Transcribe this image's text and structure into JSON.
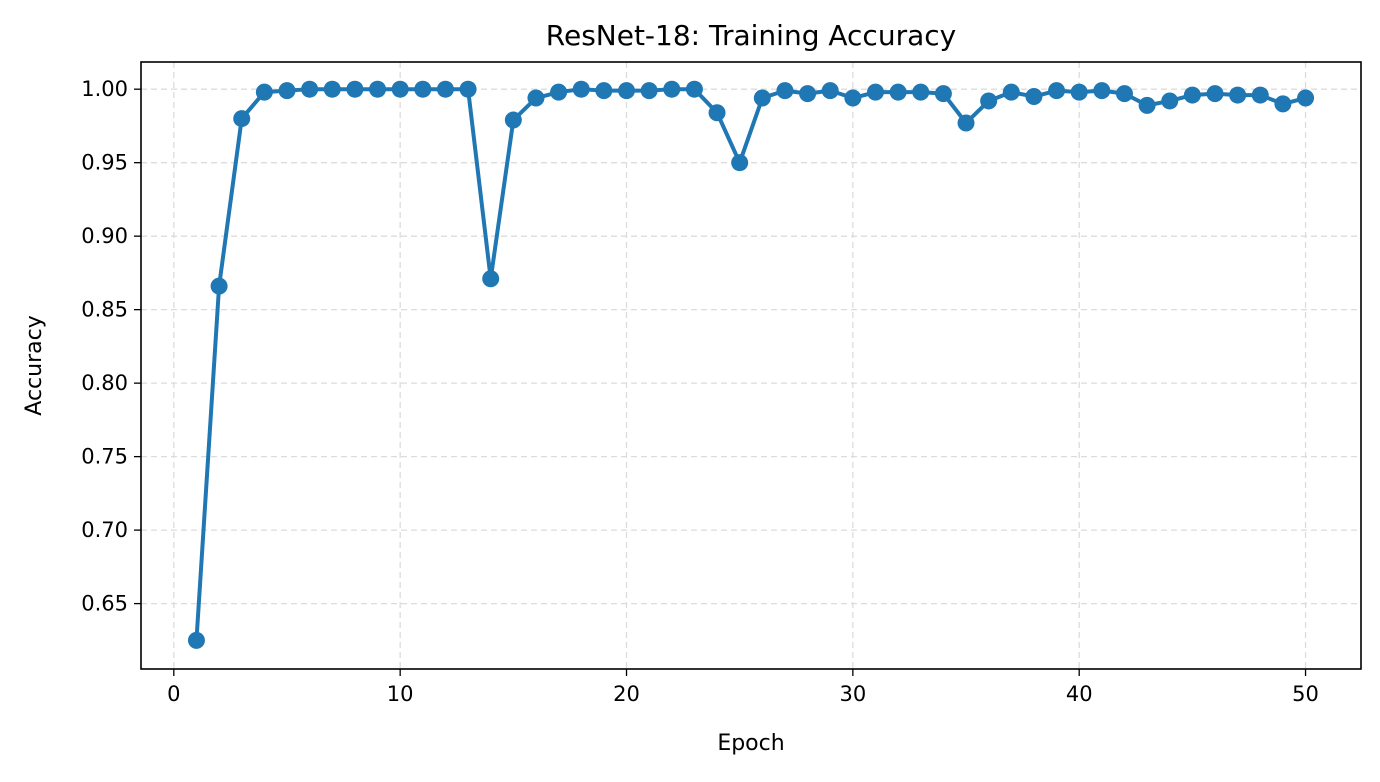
{
  "chart_data": {
    "type": "line",
    "title": "ResNet-18: Training Accuracy",
    "xlabel": "Epoch",
    "ylabel": "Accuracy",
    "xlim": [
      -1.45,
      52.45
    ],
    "ylim": [
      0.6055,
      1.0185
    ],
    "x_ticks": [
      0,
      10,
      20,
      30,
      40,
      50
    ],
    "x_tick_labels": [
      "0",
      "10",
      "20",
      "30",
      "40",
      "50"
    ],
    "y_ticks": [
      0.65,
      0.7,
      0.75,
      0.8,
      0.85,
      0.9,
      0.95,
      1.0
    ],
    "y_tick_labels": [
      "0.65",
      "0.70",
      "0.75",
      "0.80",
      "0.85",
      "0.90",
      "0.95",
      "1.00"
    ],
    "grid": true,
    "line_color": "#1f77b4",
    "marker": "circle",
    "series": [
      {
        "x": [
          1,
          2,
          3,
          4,
          5,
          6,
          7,
          8,
          9,
          10,
          11,
          12,
          13,
          14,
          15,
          16,
          17,
          18,
          19,
          20,
          21,
          22,
          23,
          24,
          25,
          26,
          27,
          28,
          29,
          30,
          31,
          32,
          33,
          34,
          35,
          36,
          37,
          38,
          39,
          40,
          41,
          42,
          43,
          44,
          45,
          46,
          47,
          48,
          49,
          50
        ],
        "values": [
          0.625,
          0.866,
          0.98,
          0.998,
          0.999,
          1.0,
          1.0,
          1.0,
          1.0,
          1.0,
          1.0,
          1.0,
          1.0,
          0.871,
          0.979,
          0.994,
          0.998,
          1.0,
          0.999,
          0.999,
          0.999,
          1.0,
          1.0,
          0.984,
          0.95,
          0.994,
          0.999,
          0.997,
          0.999,
          0.994,
          0.998,
          0.998,
          0.998,
          0.997,
          0.977,
          0.992,
          0.998,
          0.995,
          0.999,
          0.998,
          0.999,
          0.997,
          0.989,
          0.992,
          0.996,
          0.997,
          0.996,
          0.996,
          0.99,
          0.994
        ]
      }
    ]
  }
}
